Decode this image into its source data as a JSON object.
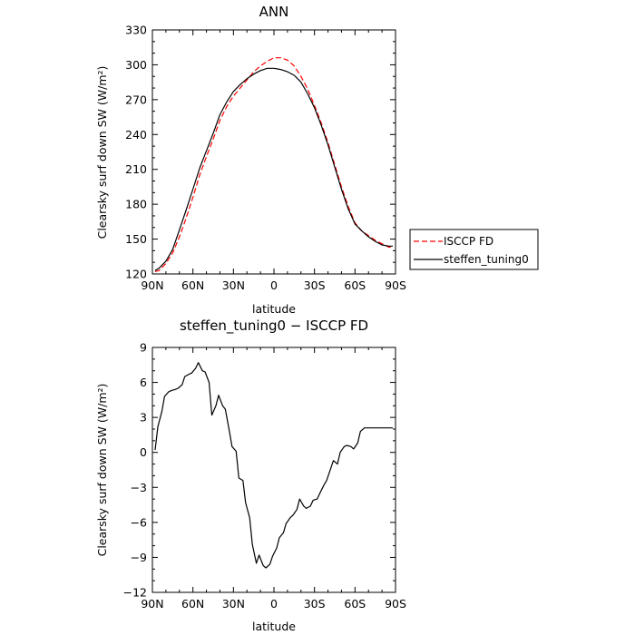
{
  "chart_data": [
    {
      "type": "line",
      "title": "ANN",
      "xlabel": "latitude",
      "ylabel": "Clearsky surf down SW (W/m²)",
      "xlim": [
        -90,
        90
      ],
      "ylim": [
        120,
        330
      ],
      "x_ticks": [
        -90,
        -60,
        -30,
        0,
        30,
        60,
        90
      ],
      "x_tick_labels": [
        "90N",
        "60N",
        "30N",
        "0",
        "30S",
        "60S",
        "90S"
      ],
      "y_ticks": [
        120,
        150,
        180,
        210,
        240,
        270,
        300,
        330
      ],
      "y_tick_labels": [
        "120",
        "150",
        "180",
        "210",
        "240",
        "270",
        "300",
        "330"
      ],
      "grid": false,
      "legend_placement": "outside-right",
      "series": [
        {
          "name": "ISCCP FD",
          "color": "#ff0000",
          "dash": "dashed",
          "x": [
            -88,
            -85,
            -80,
            -75,
            -70,
            -65,
            -60,
            -55,
            -50,
            -45,
            -40,
            -35,
            -30,
            -25,
            -20,
            -15,
            -10,
            -5,
            0,
            5,
            10,
            15,
            20,
            25,
            30,
            35,
            40,
            45,
            50,
            55,
            60,
            65,
            70,
            75,
            80,
            85,
            88
          ],
          "y": [
            122,
            123,
            129,
            138,
            152,
            168,
            186,
            205,
            221,
            236,
            252,
            264,
            273,
            280,
            287,
            294,
            299,
            303,
            306,
            306,
            304,
            299,
            290,
            279,
            265,
            250,
            233,
            214,
            195,
            178,
            164,
            157,
            153,
            149,
            146,
            143,
            143
          ]
        },
        {
          "name": "steffen_tuning0",
          "color": "#000000",
          "dash": "solid",
          "x": [
            -88,
            -85,
            -80,
            -75,
            -70,
            -65,
            -60,
            -55,
            -50,
            -45,
            -40,
            -35,
            -30,
            -25,
            -20,
            -15,
            -10,
            -5,
            0,
            5,
            10,
            15,
            20,
            25,
            30,
            35,
            40,
            45,
            50,
            55,
            60,
            65,
            70,
            75,
            80,
            85,
            88
          ],
          "y": [
            123,
            125,
            131,
            141,
            158,
            175,
            193,
            211,
            226,
            241,
            257,
            268,
            277,
            283,
            288,
            292,
            295,
            297,
            297,
            296,
            294,
            291,
            285,
            275,
            263,
            248,
            231,
            212,
            193,
            176,
            163,
            157,
            152,
            148,
            145,
            144,
            144
          ]
        }
      ]
    },
    {
      "type": "line",
      "title": "steffen_tuning0 − ISCCP FD",
      "xlabel": "latitude",
      "ylabel": "Clearsky surf down SW (W/m²)",
      "xlim": [
        -90,
        90
      ],
      "ylim": [
        -12,
        9
      ],
      "x_ticks": [
        -90,
        -60,
        -30,
        0,
        30,
        60,
        90
      ],
      "x_tick_labels": [
        "90N",
        "60N",
        "30N",
        "0",
        "30S",
        "60S",
        "90S"
      ],
      "y_ticks": [
        -12,
        -9,
        -6,
        -3,
        0,
        3,
        6,
        9
      ],
      "y_tick_labels": [
        "−12",
        "−9",
        "−6",
        "−3",
        "0",
        "3",
        "6",
        "9"
      ],
      "grid": false,
      "series": [
        {
          "color": "#000000",
          "dash": "solid",
          "x": [
            -88,
            -86,
            -83,
            -81,
            -78,
            -76,
            -73,
            -71,
            -68,
            -66,
            -63,
            -61,
            -58,
            -56,
            -53,
            -51,
            -48,
            -46,
            -43,
            -41,
            -38,
            -36,
            -33,
            -31,
            -28,
            -26,
            -23,
            -21,
            -18,
            -16,
            -13,
            -11,
            -8,
            -6,
            -3,
            -1,
            2,
            4,
            7,
            9,
            12,
            14,
            17,
            19,
            22,
            24,
            27,
            29,
            32,
            34,
            37,
            39,
            42,
            44,
            47,
            49,
            52,
            54,
            57,
            59,
            62,
            64,
            67,
            69,
            72,
            74,
            77,
            79,
            82,
            84,
            87,
            88
          ],
          "y": [
            0.2,
            2.2,
            3.5,
            4.8,
            5.2,
            5.3,
            5.4,
            5.5,
            5.8,
            6.5,
            6.7,
            6.8,
            7.2,
            7.7,
            7.0,
            6.9,
            6.0,
            3.2,
            4.0,
            4.9,
            4.0,
            3.7,
            1.8,
            0.5,
            0.1,
            -2.2,
            -2.4,
            -4.3,
            -5.6,
            -7.9,
            -9.5,
            -8.8,
            -9.7,
            -9.9,
            -9.6,
            -8.9,
            -8.2,
            -7.3,
            -6.9,
            -6.1,
            -5.6,
            -5.4,
            -4.9,
            -4.0,
            -4.6,
            -4.8,
            -4.6,
            -4.1,
            -4.0,
            -3.5,
            -2.8,
            -2.4,
            -1.4,
            -0.7,
            -1.0,
            0.0,
            0.5,
            0.6,
            0.5,
            0.3,
            0.8,
            1.8,
            2.1,
            2.1,
            2.1,
            2.1,
            2.1,
            2.1,
            2.1,
            2.1,
            2.1,
            2.1
          ]
        }
      ]
    }
  ]
}
